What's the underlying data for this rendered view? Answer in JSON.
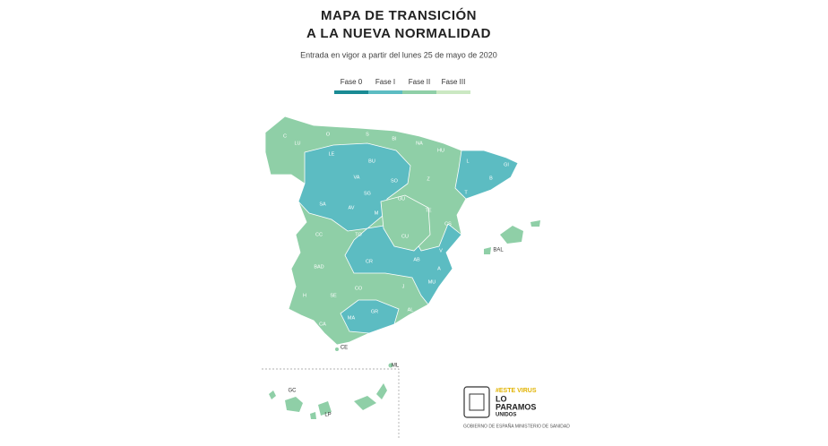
{
  "title": [
    "MAPA DE TRANSICIÓN",
    "A LA NUEVA NORMALIDAD"
  ],
  "subtitle": "Entrada en vigor a partir del lunes 25 de mayo de 2020",
  "legend": [
    {
      "label": "Fase 0",
      "color": "#1a8b94"
    },
    {
      "label": "Fase I",
      "color": "#5cbcc2"
    },
    {
      "label": "Fase II",
      "color": "#8fcfa7"
    },
    {
      "label": "Fase III",
      "color": "#cbe8c2"
    }
  ],
  "map_labels": [
    "C",
    "LU",
    "O",
    "S",
    "BI",
    "NA",
    "HU",
    "L",
    "GI",
    "B",
    "LE",
    "BU",
    "SO",
    "Z",
    "T",
    "VA",
    "SG",
    "GU",
    "TE",
    "CS",
    "SA",
    "AV",
    "M",
    "CU",
    "V",
    "CC",
    "TO",
    "AB",
    "A",
    "BAD",
    "CR",
    "J",
    "MU",
    "H",
    "SE",
    "CO",
    "GR",
    "AL",
    "CA",
    "MA",
    "BAL",
    "CE",
    "ML",
    "GC",
    "LP"
  ],
  "logo": {
    "tag": "#ESTE VIRUS",
    "line1": "LO",
    "line2": "PARAMOS",
    "line3": "UNIDOS",
    "footer": "GOBIERNO DE ESPAÑA  MINISTERIO DE SANIDAD"
  }
}
